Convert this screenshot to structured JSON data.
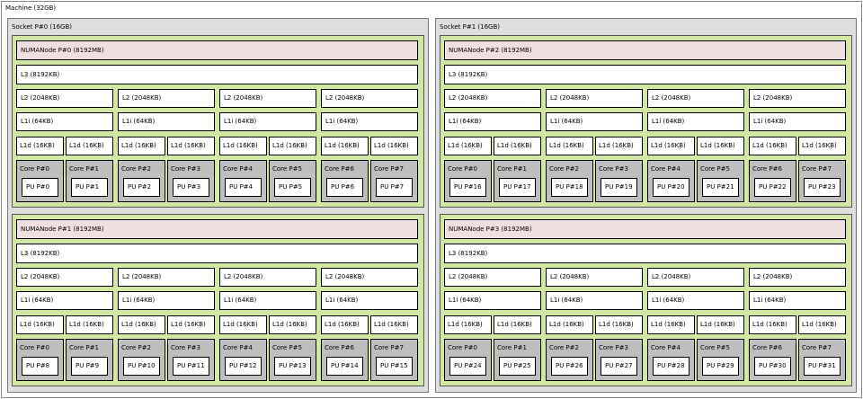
{
  "machine": {
    "label": "Machine (32GB)",
    "sockets": [
      {
        "label": "Socket P#0 (16GB)",
        "numa": [
          {
            "label": "NUMANode P#0 (8192MB)",
            "l3": "L3 (8192KB)",
            "groups": [
              {
                "l2": "L2 (2048KB)",
                "l1i": "L1i (64KB)",
                "l1d": [
                  "L1d (16KB)",
                  "L1d (16KB)"
                ],
                "cores": [
                  {
                    "label": "Core P#0",
                    "pu": "PU P#0"
                  },
                  {
                    "label": "Core P#1",
                    "pu": "PU P#1"
                  }
                ]
              },
              {
                "l2": "L2 (2048KB)",
                "l1i": "L1i (64KB)",
                "l1d": [
                  "L1d (16KB)",
                  "L1d (16KB)"
                ],
                "cores": [
                  {
                    "label": "Core P#2",
                    "pu": "PU P#2"
                  },
                  {
                    "label": "Core P#3",
                    "pu": "PU P#3"
                  }
                ]
              },
              {
                "l2": "L2 (2048KB)",
                "l1i": "L1i (64KB)",
                "l1d": [
                  "L1d (16KB)",
                  "L1d (16KB)"
                ],
                "cores": [
                  {
                    "label": "Core P#4",
                    "pu": "PU P#4"
                  },
                  {
                    "label": "Core P#5",
                    "pu": "PU P#5"
                  }
                ]
              },
              {
                "l2": "L2 (2048KB)",
                "l1i": "L1i (64KB)",
                "l1d": [
                  "L1d (16KB)",
                  "L1d (16KB)"
                ],
                "cores": [
                  {
                    "label": "Core P#6",
                    "pu": "PU P#6"
                  },
                  {
                    "label": "Core P#7",
                    "pu": "PU P#7"
                  }
                ]
              }
            ]
          },
          {
            "label": "NUMANode P#1 (8192MB)",
            "l3": "L3 (8192KB)",
            "groups": [
              {
                "l2": "L2 (2048KB)",
                "l1i": "L1i (64KB)",
                "l1d": [
                  "L1d (16KB)",
                  "L1d (16KB)"
                ],
                "cores": [
                  {
                    "label": "Core P#0",
                    "pu": "PU P#8"
                  },
                  {
                    "label": "Core P#1",
                    "pu": "PU P#9"
                  }
                ]
              },
              {
                "l2": "L2 (2048KB)",
                "l1i": "L1i (64KB)",
                "l1d": [
                  "L1d (16KB)",
                  "L1d (16KB)"
                ],
                "cores": [
                  {
                    "label": "Core P#2",
                    "pu": "PU P#10"
                  },
                  {
                    "label": "Core P#3",
                    "pu": "PU P#11"
                  }
                ]
              },
              {
                "l2": "L2 (2048KB)",
                "l1i": "L1i (64KB)",
                "l1d": [
                  "L1d (16KB)",
                  "L1d (16KB)"
                ],
                "cores": [
                  {
                    "label": "Core P#4",
                    "pu": "PU P#12"
                  },
                  {
                    "label": "Core P#5",
                    "pu": "PU P#13"
                  }
                ]
              },
              {
                "l2": "L2 (2048KB)",
                "l1i": "L1i (64KB)",
                "l1d": [
                  "L1d (16KB)",
                  "L1d (16KB)"
                ],
                "cores": [
                  {
                    "label": "Core P#6",
                    "pu": "PU P#14"
                  },
                  {
                    "label": "Core P#7",
                    "pu": "PU P#15"
                  }
                ]
              }
            ]
          }
        ]
      },
      {
        "label": "Socket P#1 (16GB)",
        "numa": [
          {
            "label": "NUMANode P#2 (8192MB)",
            "l3": "L3 (8192KB)",
            "groups": [
              {
                "l2": "L2 (2048KB)",
                "l1i": "L1i (64KB)",
                "l1d": [
                  "L1d (16KB)",
                  "L1d (16KB)"
                ],
                "cores": [
                  {
                    "label": "Core P#0",
                    "pu": "PU P#16"
                  },
                  {
                    "label": "Core P#1",
                    "pu": "PU P#17"
                  }
                ]
              },
              {
                "l2": "L2 (2048KB)",
                "l1i": "L1i (64KB)",
                "l1d": [
                  "L1d (16KB)",
                  "L1d (16KB)"
                ],
                "cores": [
                  {
                    "label": "Core P#2",
                    "pu": "PU P#18"
                  },
                  {
                    "label": "Core P#3",
                    "pu": "PU P#19"
                  }
                ]
              },
              {
                "l2": "L2 (2048KB)",
                "l1i": "L1i (64KB)",
                "l1d": [
                  "L1d (16KB)",
                  "L1d (16KB)"
                ],
                "cores": [
                  {
                    "label": "Core P#4",
                    "pu": "PU P#20"
                  },
                  {
                    "label": "Core P#5",
                    "pu": "PU P#21"
                  }
                ]
              },
              {
                "l2": "L2 (2048KB)",
                "l1i": "L1i (64KB)",
                "l1d": [
                  "L1d (16KB)",
                  "L1d (16KB)"
                ],
                "cores": [
                  {
                    "label": "Core P#6",
                    "pu": "PU P#22"
                  },
                  {
                    "label": "Core P#7",
                    "pu": "PU P#23"
                  }
                ]
              }
            ]
          },
          {
            "label": "NUMANode P#3 (8192MB)",
            "l3": "L3 (8192KB)",
            "groups": [
              {
                "l2": "L2 (2048KB)",
                "l1i": "L1i (64KB)",
                "l1d": [
                  "L1d (16KB)",
                  "L1d (16KB)"
                ],
                "cores": [
                  {
                    "label": "Core P#0",
                    "pu": "PU P#24"
                  },
                  {
                    "label": "Core P#1",
                    "pu": "PU P#25"
                  }
                ]
              },
              {
                "l2": "L2 (2048KB)",
                "l1i": "L1i (64KB)",
                "l1d": [
                  "L1d (16KB)",
                  "L1d (16KB)"
                ],
                "cores": [
                  {
                    "label": "Core P#2",
                    "pu": "PU P#26"
                  },
                  {
                    "label": "Core P#3",
                    "pu": "PU P#27"
                  }
                ]
              },
              {
                "l2": "L2 (2048KB)",
                "l1i": "L1i (64KB)",
                "l1d": [
                  "L1d (16KB)",
                  "L1d (16KB)"
                ],
                "cores": [
                  {
                    "label": "Core P#4",
                    "pu": "PU P#28"
                  },
                  {
                    "label": "Core P#5",
                    "pu": "PU P#29"
                  }
                ]
              },
              {
                "l2": "L2 (2048KB)",
                "l1i": "L1i (64KB)",
                "l1d": [
                  "L1d (16KB)",
                  "L1d (16KB)"
                ],
                "cores": [
                  {
                    "label": "Core P#6",
                    "pu": "PU P#30"
                  },
                  {
                    "label": "Core P#7",
                    "pu": "PU P#31"
                  }
                ]
              }
            ]
          }
        ]
      }
    ]
  }
}
